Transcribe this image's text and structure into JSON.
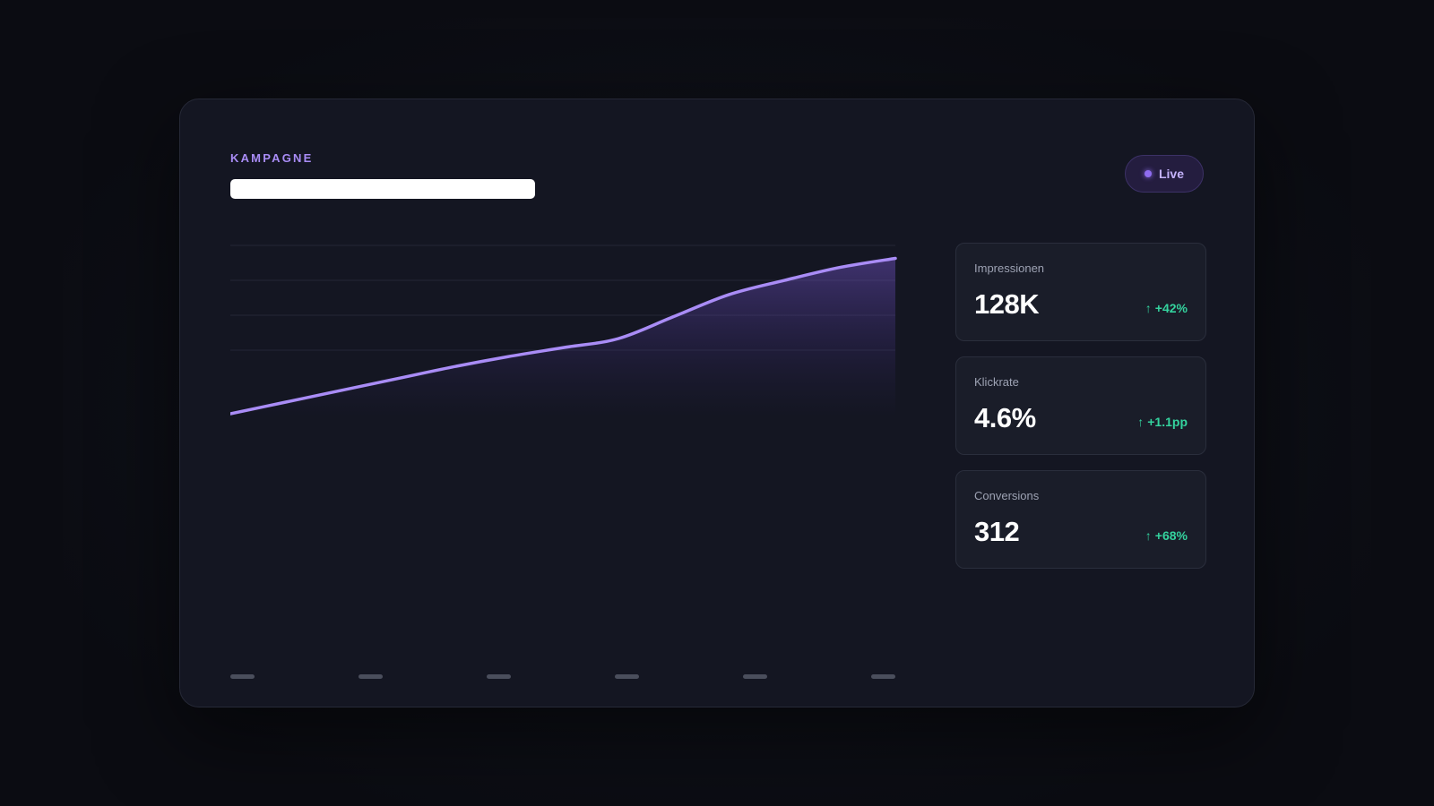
{
  "header": {
    "eyebrow": "KAMPAGNE",
    "status_badge": "Live"
  },
  "colors": {
    "accent": "#a98cf6",
    "positive": "#34d39e",
    "card_bg": "#141622"
  },
  "chart_data": {
    "type": "area",
    "x": [
      0,
      1,
      2,
      3,
      4,
      5,
      6,
      7,
      8,
      9,
      10,
      11,
      12
    ],
    "values": [
      0,
      9,
      18,
      27,
      36,
      44,
      51,
      58,
      75,
      92,
      103,
      113,
      120
    ],
    "ylim": [
      0,
      130
    ],
    "grid": true,
    "x_ticks": 6,
    "xlabel": "",
    "ylabel": ""
  },
  "stats": [
    {
      "label": "Impressionen",
      "value": "128K",
      "delta": "+42%",
      "icon": "arrow-up-icon"
    },
    {
      "label": "Klickrate",
      "value": "4.6%",
      "delta": "+1.1pp",
      "icon": "arrow-up-icon"
    },
    {
      "label": "Conversions",
      "value": "312",
      "delta": "+68%",
      "icon": "arrow-up-icon"
    }
  ]
}
